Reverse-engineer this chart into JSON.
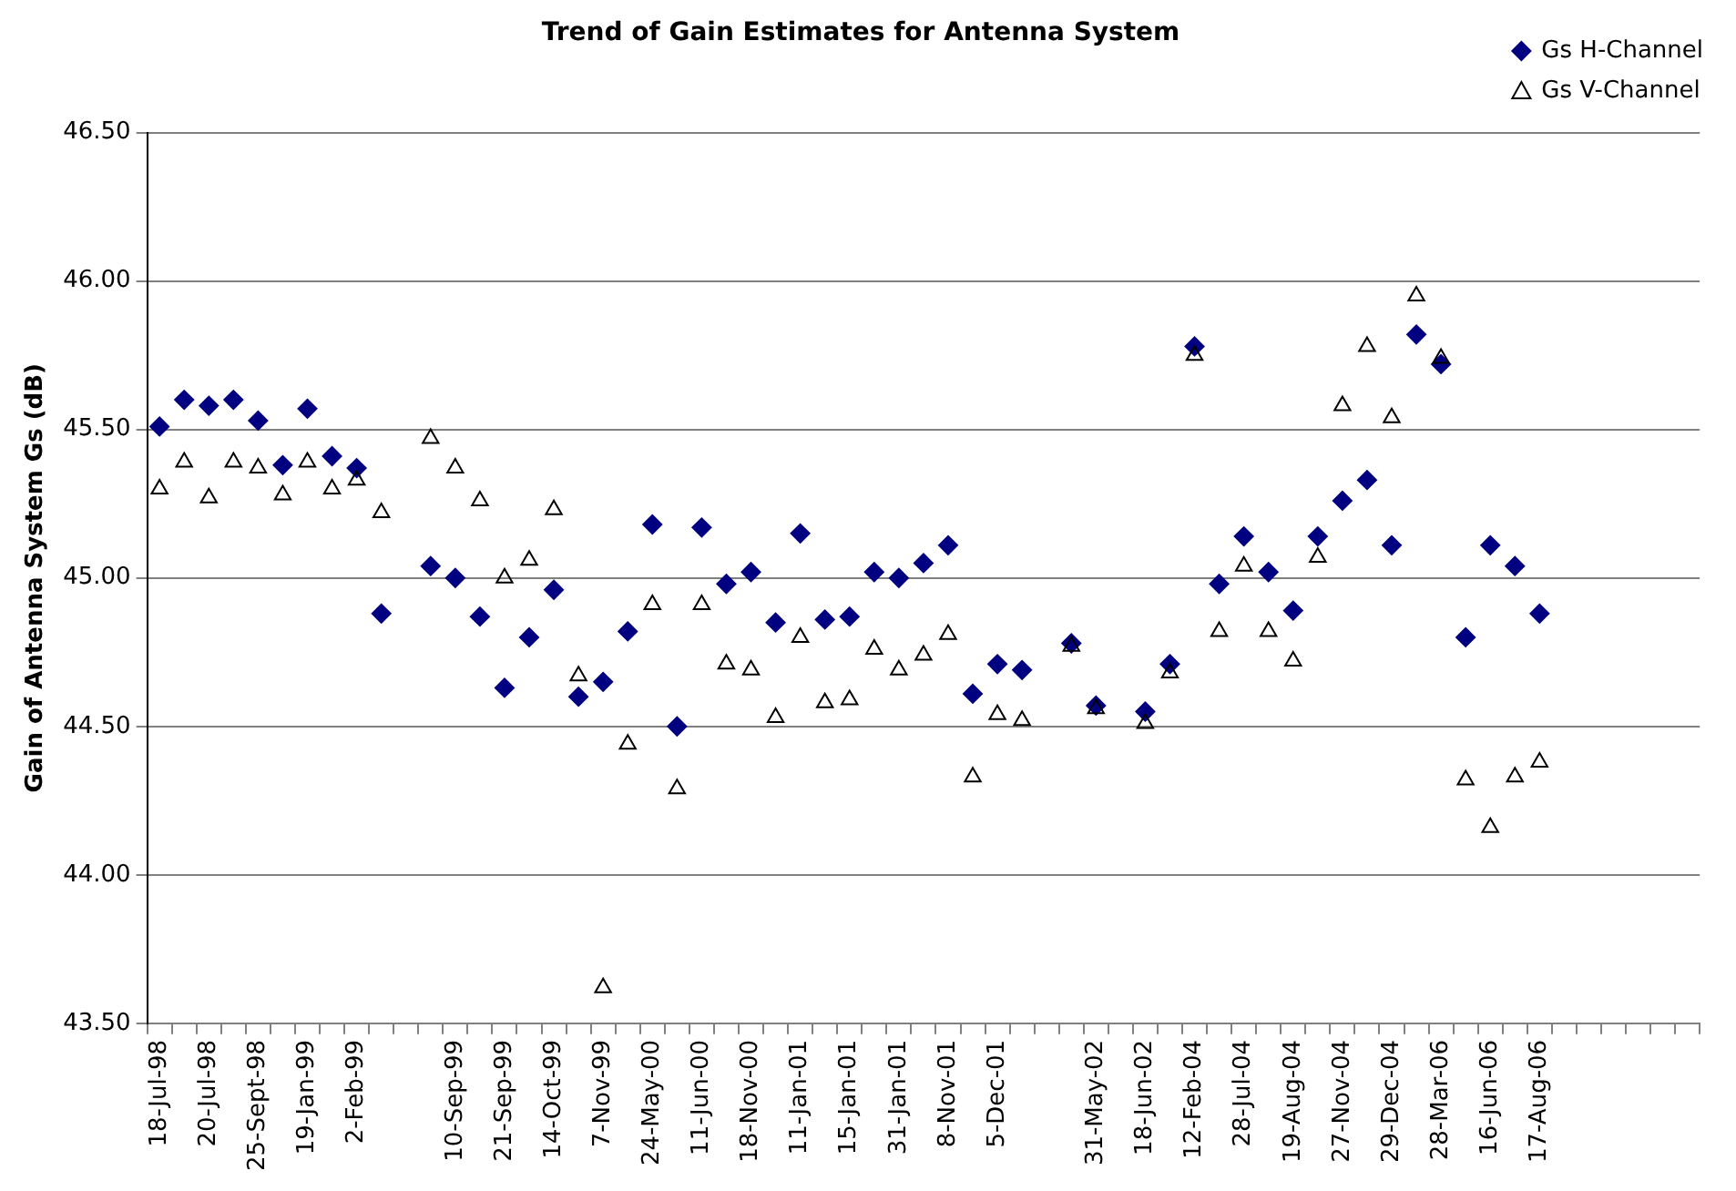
{
  "chart_data": {
    "type": "scatter",
    "title": "Trend of Gain Estimates for Antenna System",
    "ylabel": "Gain of Antenna System Gs (dB)",
    "categories": [
      "18-Jul-98",
      null,
      "20-Jul-98",
      null,
      "25-Sept-98",
      null,
      "19-Jan-99",
      null,
      "2-Feb-99",
      null,
      null,
      null,
      "10-Sep-99",
      null,
      "21-Sep-99",
      null,
      "14-Oct-99",
      null,
      "7-Nov-99",
      null,
      "24-May-00",
      null,
      "11-Jun-00",
      null,
      "18-Nov-00",
      null,
      "11-Jan-01",
      null,
      "15-Jan-01",
      null,
      "31-Jan-01",
      null,
      "8-Nov-01",
      null,
      "5-Dec-01",
      null,
      null,
      null,
      "31-May-02",
      null,
      "18-Jun-02",
      null,
      "12-Feb-04",
      null,
      "28-Jul-04",
      null,
      "19-Aug-04",
      null,
      "27-Nov-04",
      null,
      "29-Dec-04",
      null,
      "28-Mar-06",
      null,
      "16-Jun-06",
      null,
      "17-Aug-06",
      null,
      null,
      null,
      null,
      null,
      null
    ],
    "series": [
      {
        "name": "Gs H-Channel",
        "color": "#000080",
        "marker": "diamond",
        "values": [
          45.51,
          45.6,
          45.58,
          45.6,
          45.53,
          45.38,
          45.57,
          45.41,
          45.37,
          44.88,
          null,
          45.04,
          45.0,
          44.87,
          44.63,
          44.8,
          44.96,
          44.6,
          44.65,
          44.82,
          45.18,
          44.5,
          45.17,
          44.98,
          45.02,
          44.85,
          45.15,
          44.86,
          44.87,
          45.02,
          45.0,
          45.05,
          45.11,
          44.61,
          44.71,
          44.69,
          null,
          44.78,
          44.57,
          null,
          44.55,
          44.71,
          45.78,
          44.98,
          45.14,
          45.02,
          44.89,
          45.14,
          45.26,
          45.33,
          45.11,
          45.82,
          45.72,
          44.8,
          45.11,
          45.04,
          44.88,
          null,
          null,
          null,
          null,
          null,
          null
        ]
      },
      {
        "name": "Gs V-Channel",
        "color": "#000000",
        "marker": "triangle",
        "values": [
          45.3,
          45.39,
          45.27,
          45.39,
          45.37,
          45.28,
          45.39,
          45.3,
          45.33,
          45.22,
          null,
          45.47,
          45.37,
          45.26,
          45.0,
          45.06,
          45.23,
          44.67,
          43.62,
          44.44,
          44.91,
          44.29,
          44.91,
          44.71,
          44.69,
          44.53,
          44.8,
          44.58,
          44.59,
          44.76,
          44.69,
          44.74,
          44.81,
          44.33,
          44.54,
          44.52,
          null,
          44.77,
          44.56,
          null,
          44.51,
          44.68,
          45.75,
          44.82,
          45.04,
          44.82,
          44.72,
          45.07,
          45.58,
          45.78,
          45.54,
          45.95,
          45.74,
          44.32,
          44.16,
          44.33,
          44.38,
          null,
          null,
          null,
          null,
          null,
          null
        ]
      }
    ],
    "ylim": [
      43.5,
      46.5
    ],
    "yticks": [
      {
        "value": 43.5,
        "label": "43.50"
      },
      {
        "value": 44,
        "label": "44.00"
      },
      {
        "value": 44.5,
        "label": "44.50"
      },
      {
        "value": 45,
        "label": "45.00"
      },
      {
        "value": 45.5,
        "label": "45.50"
      },
      {
        "value": 46,
        "label": "46.00"
      },
      {
        "value": 46.5,
        "label": "46.50"
      }
    ],
    "grid": "y",
    "legend": "top right"
  }
}
